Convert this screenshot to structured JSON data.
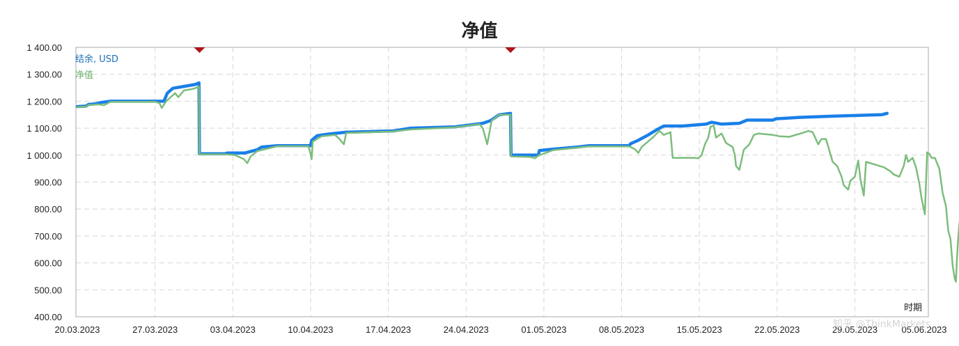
{
  "chart_data": {
    "type": "line",
    "title": "净值",
    "xlabel": "时期",
    "ylabel": "",
    "ylim": [
      400,
      1400
    ],
    "yticks": [
      "1 400.00",
      "1 300.00",
      "1 200.00",
      "1 100.00",
      "1 000.00",
      "900.00",
      "800.00",
      "700.00",
      "600.00",
      "500.00",
      "400.00"
    ],
    "xticks": [
      "20.03.2023",
      "27.03.2023",
      "03.04.2023",
      "10.04.2023",
      "17.04.2023",
      "24.04.2023",
      "01.05.2023",
      "08.05.2023",
      "15.05.2023",
      "22.05.2023",
      "29.05.2023",
      "05.06.2023"
    ],
    "grid": true,
    "legend_position": "top-left",
    "markers": [
      {
        "x": 11.0,
        "type": "deposit-marker"
      },
      {
        "x": 39.0,
        "type": "deposit-marker"
      }
    ],
    "series": [
      {
        "name": "结余, USD",
        "color": "#1a7fe8",
        "points": [
          [
            0.0,
            1180
          ],
          [
            0.8,
            1182
          ],
          [
            1.0,
            1188
          ],
          [
            1.6,
            1190
          ],
          [
            2.1,
            1195
          ],
          [
            3.0,
            1200
          ],
          [
            7.0,
            1200
          ],
          [
            7.8,
            1200
          ],
          [
            8.1,
            1230
          ],
          [
            8.6,
            1248
          ],
          [
            9.6,
            1255
          ],
          [
            10.6,
            1262
          ],
          [
            10.95,
            1268
          ],
          [
            11.0,
            1005
          ],
          [
            13.3,
            1005
          ],
          [
            13.5,
            1008
          ],
          [
            15.1,
            1008
          ],
          [
            16.2,
            1020
          ],
          [
            16.6,
            1030
          ],
          [
            18.0,
            1035
          ],
          [
            21.0,
            1035
          ],
          [
            21.1,
            1055
          ],
          [
            21.6,
            1072
          ],
          [
            22.6,
            1078
          ],
          [
            24.2,
            1085
          ],
          [
            28.5,
            1090
          ],
          [
            30.0,
            1100
          ],
          [
            34.0,
            1105
          ],
          [
            36.5,
            1118
          ],
          [
            37.2,
            1128
          ],
          [
            38.0,
            1150
          ],
          [
            39.0,
            1155
          ],
          [
            39.05,
            1000
          ],
          [
            41.5,
            1000
          ],
          [
            41.6,
            1017
          ],
          [
            42.8,
            1022
          ],
          [
            45.0,
            1030
          ],
          [
            46.0,
            1035
          ],
          [
            49.7,
            1035
          ],
          [
            49.8,
            1042
          ],
          [
            50.5,
            1055
          ],
          [
            51.4,
            1075
          ],
          [
            52.2,
            1095
          ],
          [
            52.8,
            1108
          ],
          [
            54.5,
            1108
          ],
          [
            56.6,
            1115
          ],
          [
            57.1,
            1122
          ],
          [
            58.0,
            1115
          ],
          [
            59.6,
            1118
          ],
          [
            60.3,
            1130
          ],
          [
            62.6,
            1130
          ],
          [
            62.9,
            1135
          ],
          [
            65.0,
            1140
          ],
          [
            68.2,
            1145
          ],
          [
            72.4,
            1150
          ],
          [
            72.9,
            1155
          ]
        ]
      },
      {
        "name": "净值",
        "color": "#7cbd7c",
        "points": [
          [
            0.0,
            1178
          ],
          [
            0.8,
            1180
          ],
          [
            1.0,
            1186
          ],
          [
            2.0,
            1188
          ],
          [
            2.4,
            1185
          ],
          [
            3.0,
            1198
          ],
          [
            7.0,
            1198
          ],
          [
            7.4,
            1193
          ],
          [
            7.6,
            1175
          ],
          [
            8.0,
            1200
          ],
          [
            8.4,
            1215
          ],
          [
            8.8,
            1230
          ],
          [
            9.1,
            1215
          ],
          [
            9.6,
            1240
          ],
          [
            10.3,
            1245
          ],
          [
            10.6,
            1248
          ],
          [
            10.95,
            1255
          ],
          [
            11.0,
            1003
          ],
          [
            13.3,
            1003
          ],
          [
            14.2,
            1000
          ],
          [
            15.0,
            985
          ],
          [
            15.3,
            970
          ],
          [
            15.6,
            995
          ],
          [
            16.2,
            1015
          ],
          [
            18.0,
            1033
          ],
          [
            20.8,
            1033
          ],
          [
            21.0,
            1005
          ],
          [
            21.1,
            985
          ],
          [
            21.2,
            1050
          ],
          [
            22.0,
            1070
          ],
          [
            23.2,
            1075
          ],
          [
            23.6,
            1060
          ],
          [
            24.0,
            1040
          ],
          [
            24.2,
            1082
          ],
          [
            28.5,
            1088
          ],
          [
            30.0,
            1095
          ],
          [
            34.0,
            1103
          ],
          [
            36.2,
            1115
          ],
          [
            36.5,
            1100
          ],
          [
            36.9,
            1040
          ],
          [
            37.3,
            1128
          ],
          [
            38.0,
            1150
          ],
          [
            39.0,
            1150
          ],
          [
            39.05,
            995
          ],
          [
            40.8,
            993
          ],
          [
            41.2,
            988
          ],
          [
            41.5,
            998
          ],
          [
            42.8,
            1018
          ],
          [
            46.0,
            1032
          ],
          [
            49.7,
            1032
          ],
          [
            50.2,
            1022
          ],
          [
            50.5,
            1008
          ],
          [
            50.8,
            1030
          ],
          [
            51.8,
            1065
          ],
          [
            52.4,
            1090
          ],
          [
            52.8,
            1075
          ],
          [
            53.4,
            1085
          ],
          [
            53.6,
            990
          ],
          [
            55.5,
            990
          ],
          [
            55.9,
            988
          ],
          [
            56.2,
            1000
          ],
          [
            56.5,
            1040
          ],
          [
            56.8,
            1065
          ],
          [
            57.0,
            1105
          ],
          [
            57.3,
            1110
          ],
          [
            57.5,
            1065
          ],
          [
            58.0,
            1080
          ],
          [
            58.4,
            1045
          ],
          [
            59.0,
            1030
          ],
          [
            59.2,
            1000
          ],
          [
            59.3,
            960
          ],
          [
            59.6,
            945
          ],
          [
            60.0,
            1020
          ],
          [
            60.5,
            1040
          ],
          [
            60.9,
            1075
          ],
          [
            61.3,
            1080
          ],
          [
            62.6,
            1075
          ],
          [
            63.2,
            1070
          ],
          [
            64.1,
            1068
          ],
          [
            65.5,
            1085
          ],
          [
            65.8,
            1090
          ],
          [
            66.2,
            1085
          ],
          [
            66.7,
            1040
          ],
          [
            67.0,
            1060
          ],
          [
            67.4,
            1060
          ],
          [
            68.0,
            975
          ],
          [
            68.4,
            960
          ],
          [
            68.8,
            920
          ],
          [
            69.0,
            888
          ],
          [
            69.4,
            872
          ],
          [
            69.6,
            905
          ],
          [
            70.0,
            920
          ],
          [
            70.3,
            980
          ],
          [
            70.5,
            910
          ],
          [
            70.8,
            850
          ],
          [
            71.0,
            975
          ],
          [
            71.8,
            965
          ],
          [
            72.6,
            955
          ],
          [
            73.2,
            940
          ],
          [
            73.5,
            928
          ],
          [
            74.0,
            920
          ],
          [
            74.4,
            960
          ],
          [
            74.6,
            1000
          ],
          [
            74.8,
            975
          ],
          [
            75.2,
            990
          ],
          [
            75.5,
            955
          ],
          [
            75.8,
            895
          ],
          [
            76.0,
            840
          ],
          [
            76.3,
            780
          ],
          [
            76.5,
            1010
          ],
          [
            76.7,
            1005
          ],
          [
            76.9,
            990
          ],
          [
            77.2,
            990
          ],
          [
            77.6,
            950
          ],
          [
            77.9,
            860
          ],
          [
            78.2,
            810
          ],
          [
            78.4,
            720
          ],
          [
            78.6,
            690
          ],
          [
            78.8,
            590
          ],
          [
            79.0,
            540
          ],
          [
            79.1,
            530
          ],
          [
            79.2,
            620
          ],
          [
            79.3,
            690
          ],
          [
            79.4,
            740
          ],
          [
            79.5,
            775
          ],
          [
            79.6,
            760
          ],
          [
            79.7,
            780
          ],
          [
            79.8,
            770
          ]
        ]
      }
    ]
  },
  "watermark": "知乎 @ThinkMarkets"
}
